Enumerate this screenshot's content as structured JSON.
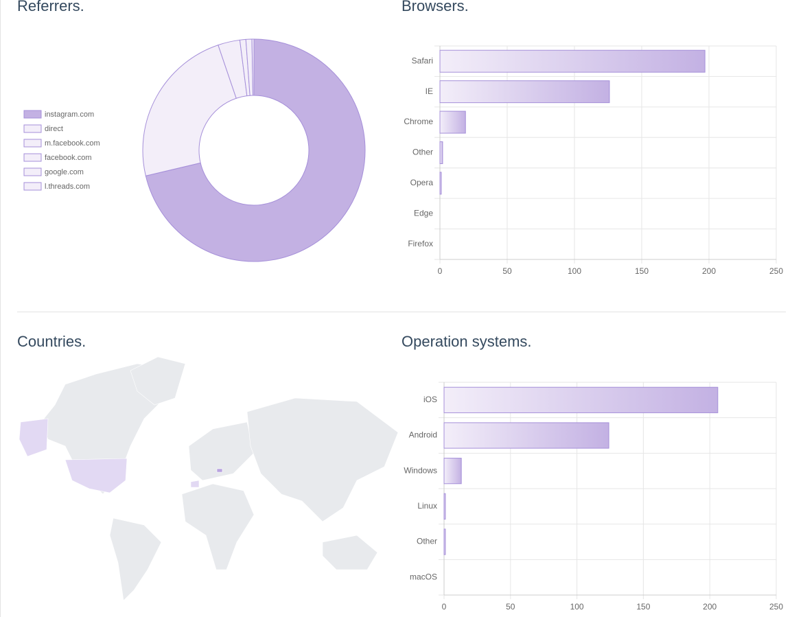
{
  "chart_data": [
    {
      "type": "pie",
      "title": "Referrers.",
      "categories": [
        "instagram.com",
        "direct",
        "m.facebook.com",
        "facebook.com",
        "google.com",
        "l.threads.com"
      ],
      "values": [
        246,
        81,
        11,
        3,
        3,
        1
      ],
      "colors": [
        "#c3b1e3",
        "#f3eef9",
        "#f3eef9",
        "#f3eef9",
        "#f3eef9",
        "#f3eef9"
      ],
      "border_color": "#a58fd9"
    },
    {
      "type": "bar",
      "title": "Browsers.",
      "orientation": "horizontal",
      "categories": [
        "Safari",
        "IE",
        "Chrome",
        "Other",
        "Opera",
        "Edge",
        "Firefox"
      ],
      "values": [
        197,
        126,
        19,
        2,
        1,
        0,
        0
      ],
      "color": "#c3b1e3",
      "border_color": "#a58fd9",
      "xlim": [
        0,
        250
      ],
      "xticks": [
        0,
        50,
        100,
        150,
        200,
        250
      ],
      "grid": true
    },
    {
      "type": "map",
      "title": "Countries."
    },
    {
      "type": "bar",
      "title": "Operation systems.",
      "orientation": "horizontal",
      "categories": [
        "iOS",
        "Android",
        "Windows",
        "Linux",
        "Other",
        "macOS"
      ],
      "values": [
        206,
        124,
        13,
        1,
        1,
        0
      ],
      "color": "#c3b1e3",
      "border_color": "#a58fd9",
      "xlim": [
        0,
        250
      ],
      "xticks": [
        0,
        50,
        100,
        150,
        200,
        250
      ],
      "grid": true
    }
  ]
}
